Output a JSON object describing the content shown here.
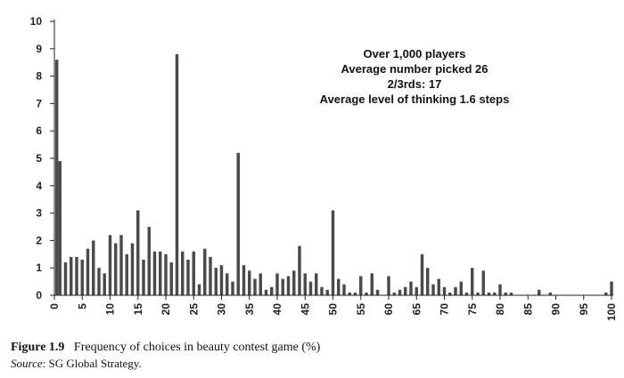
{
  "chart_data": {
    "type": "bar",
    "x": [
      0,
      1,
      2,
      3,
      4,
      5,
      6,
      7,
      8,
      9,
      10,
      11,
      12,
      13,
      14,
      15,
      16,
      17,
      18,
      19,
      20,
      21,
      22,
      23,
      24,
      25,
      26,
      27,
      28,
      29,
      30,
      31,
      32,
      33,
      34,
      35,
      36,
      37,
      38,
      39,
      40,
      41,
      42,
      43,
      44,
      45,
      46,
      47,
      48,
      49,
      50,
      51,
      52,
      53,
      54,
      55,
      56,
      57,
      58,
      59,
      60,
      61,
      62,
      63,
      64,
      65,
      66,
      67,
      68,
      69,
      70,
      71,
      72,
      73,
      74,
      75,
      76,
      77,
      78,
      79,
      80,
      81,
      82,
      83,
      84,
      85,
      86,
      87,
      88,
      89,
      90,
      91,
      92,
      93,
      94,
      95,
      96,
      97,
      98,
      99,
      100
    ],
    "values": [
      8.6,
      4.9,
      1.2,
      1.4,
      1.4,
      1.3,
      1.7,
      2.0,
      1.0,
      0.8,
      2.2,
      1.9,
      2.2,
      1.5,
      1.9,
      3.1,
      1.3,
      2.5,
      1.6,
      1.6,
      1.5,
      1.2,
      8.8,
      1.6,
      1.3,
      1.6,
      0.4,
      1.7,
      1.4,
      1.0,
      1.1,
      0.8,
      0.5,
      5.2,
      1.1,
      0.9,
      0.6,
      0.8,
      0.2,
      0.3,
      0.8,
      0.6,
      0.7,
      0.9,
      1.8,
      0.8,
      0.5,
      0.8,
      0.3,
      0.2,
      3.1,
      0.6,
      0.4,
      0.1,
      0.1,
      0.7,
      0.1,
      0.8,
      0.2,
      0.0,
      0.7,
      0.1,
      0.2,
      0.3,
      0.5,
      0.3,
      1.5,
      1.0,
      0.4,
      0.6,
      0.3,
      0.1,
      0.3,
      0.5,
      0.1,
      1.0,
      0.1,
      0.9,
      0.1,
      0.1,
      0.4,
      0.1,
      0.1,
      0.0,
      0.0,
      0.0,
      0.0,
      0.2,
      0.0,
      0.1,
      0.0,
      0.0,
      0.0,
      0.0,
      0.0,
      0.0,
      0.0,
      0.0,
      0.0,
      0.1,
      0.5
    ],
    "ylim": [
      0,
      10
    ],
    "y_ticks": [
      0,
      1,
      2,
      3,
      4,
      5,
      6,
      7,
      8,
      9,
      10
    ],
    "y_tick_labels": [
      "0",
      "1",
      "2",
      "3",
      "4",
      "5",
      "6",
      "7",
      "8",
      "9",
      "10"
    ],
    "x_ticks": [
      0,
      5,
      10,
      15,
      20,
      25,
      30,
      35,
      40,
      45,
      50,
      55,
      60,
      65,
      70,
      75,
      80,
      85,
      90,
      95,
      100
    ],
    "x_tick_labels": [
      "0",
      "5",
      "10",
      "15",
      "20",
      "25",
      "30",
      "35",
      "40",
      "45",
      "50",
      "55",
      "60",
      "65",
      "70",
      "75",
      "80",
      "85",
      "90",
      "95",
      "100"
    ],
    "grid": false,
    "title": "",
    "xlabel": "",
    "ylabel": "",
    "annotations": [
      "Over 1,000 players",
      "Average number picked 26",
      "2/3rds: 17",
      "Average level of thinking 1.6 steps"
    ],
    "bar_color": "#4a4a4a",
    "axis_color": "#222222"
  },
  "caption": {
    "figure_label": "Figure",
    "figure_number": "1.9",
    "figure_text": "Frequency of choices in beauty contest game (%)",
    "source_label": "Source",
    "source_text": ": SG Global Strategy."
  }
}
